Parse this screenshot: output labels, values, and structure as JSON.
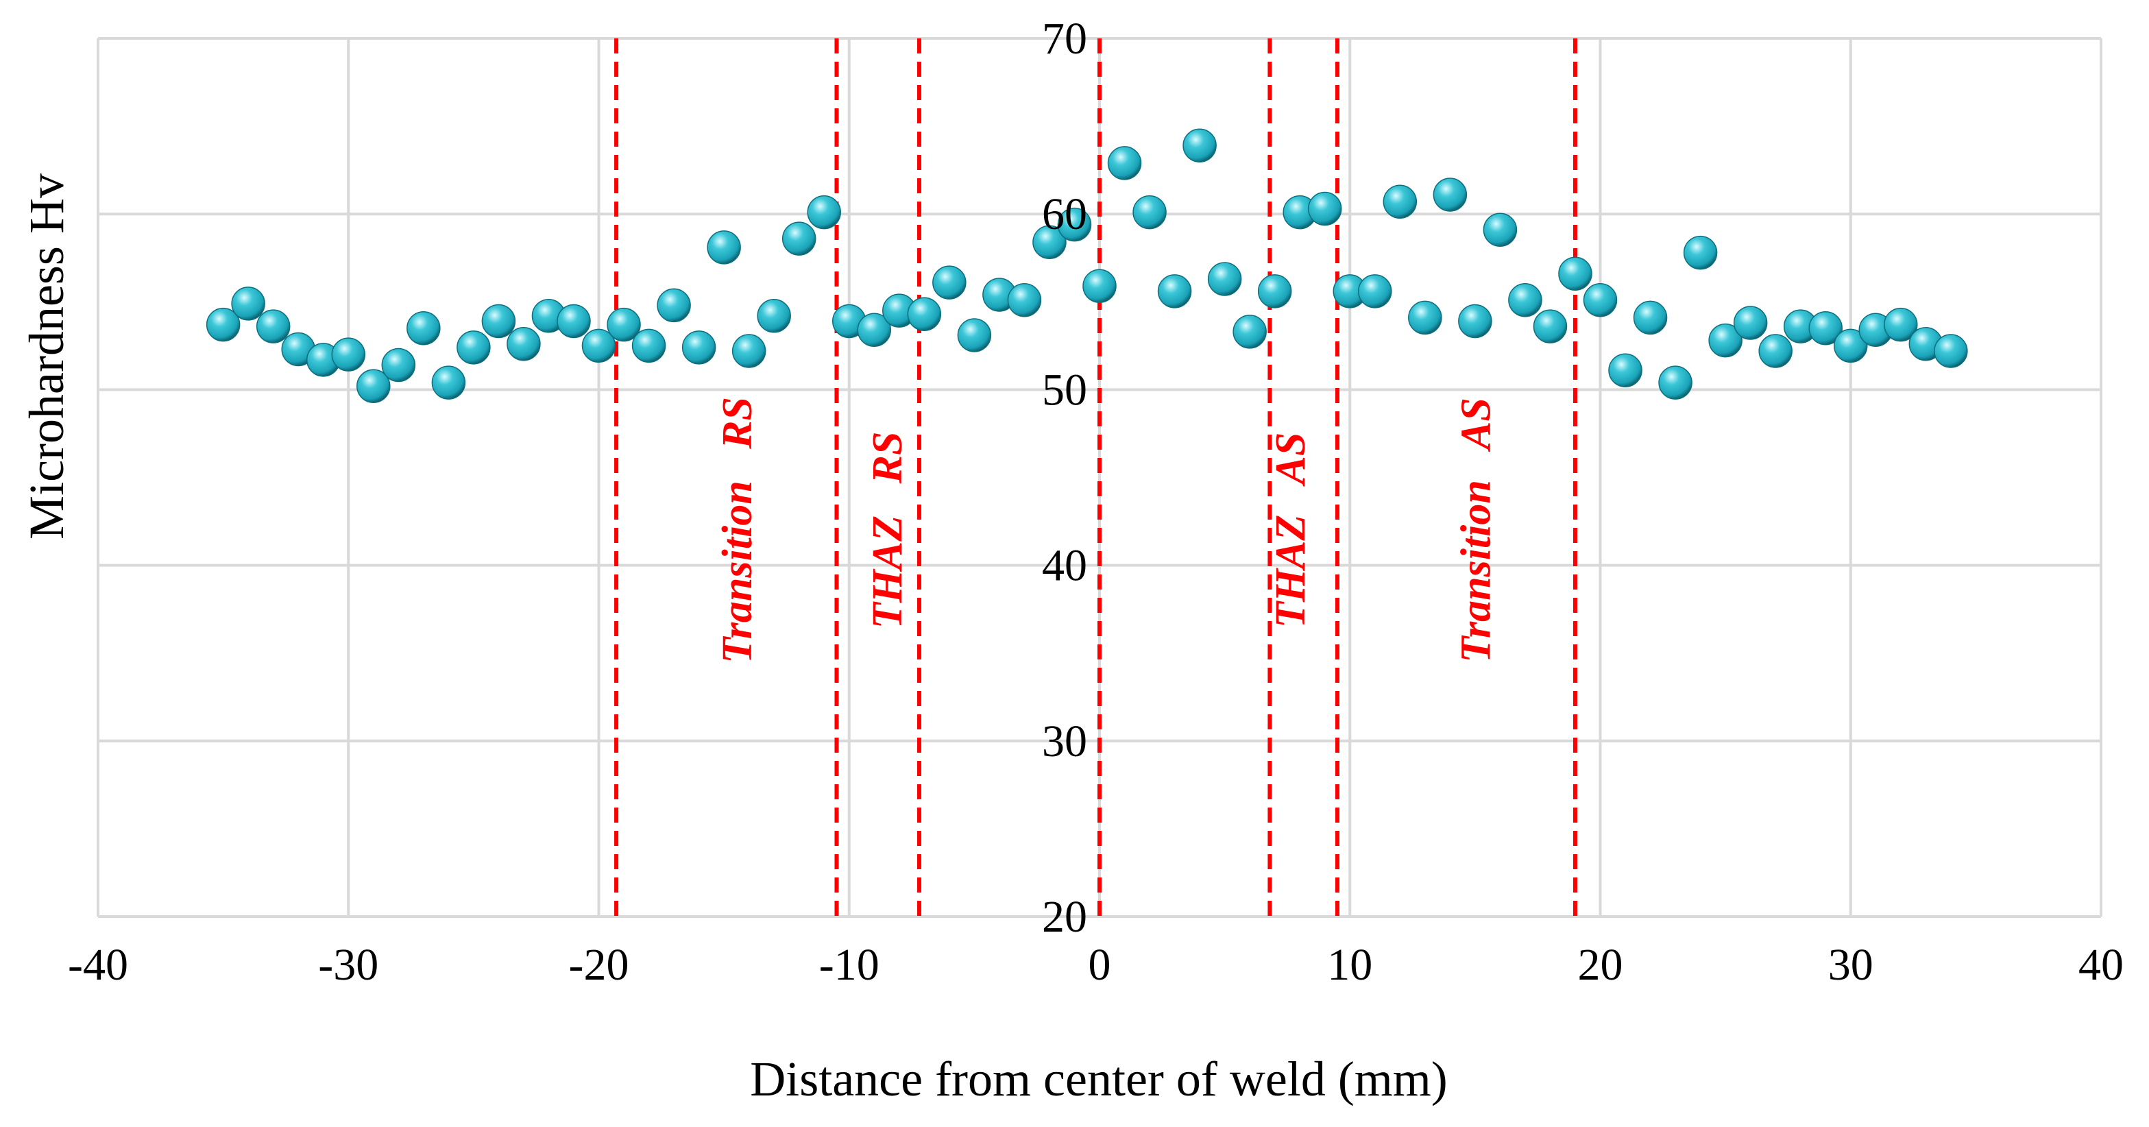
{
  "chart_data": {
    "type": "scatter",
    "title": "",
    "xlabel": "Distance from center of weld (mm)",
    "ylabel": "Microhardness Hv",
    "xlim": [
      -40,
      40
    ],
    "ylim": [
      20,
      70
    ],
    "x_ticks": [
      -40,
      -30,
      -20,
      -10,
      0,
      10,
      20,
      30,
      40
    ],
    "y_ticks": [
      20,
      30,
      40,
      50,
      60,
      70
    ],
    "grid": true,
    "legend": "none",
    "marker_color": "#1aa3b8",
    "series": [
      {
        "name": "Microhardness",
        "points": [
          [
            -35,
            53.7
          ],
          [
            -34,
            54.9
          ],
          [
            -33,
            53.6
          ],
          [
            -32,
            52.3
          ],
          [
            -31,
            51.7
          ],
          [
            -30,
            52.0
          ],
          [
            -29,
            50.2
          ],
          [
            -28,
            51.4
          ],
          [
            -27,
            53.5
          ],
          [
            -26,
            50.4
          ],
          [
            -25,
            52.4
          ],
          [
            -24,
            53.9
          ],
          [
            -23,
            52.6
          ],
          [
            -22,
            54.2
          ],
          [
            -21,
            53.9
          ],
          [
            -20,
            52.5
          ],
          [
            -19,
            53.7
          ],
          [
            -18,
            52.5
          ],
          [
            -17,
            54.8
          ],
          [
            -16,
            52.4
          ],
          [
            -15,
            58.1
          ],
          [
            -14,
            52.2
          ],
          [
            -13,
            54.2
          ],
          [
            -12,
            58.6
          ],
          [
            -11,
            60.1
          ],
          [
            -10,
            53.9
          ],
          [
            -9,
            53.4
          ],
          [
            -8,
            54.5
          ],
          [
            -7,
            54.3
          ],
          [
            -6,
            56.1
          ],
          [
            -5,
            53.1
          ],
          [
            -4,
            55.4
          ],
          [
            -3,
            55.1
          ],
          [
            -2,
            58.4
          ],
          [
            -1,
            59.4
          ],
          [
            0,
            55.9
          ],
          [
            1,
            62.9
          ],
          [
            2,
            60.1
          ],
          [
            3,
            55.6
          ],
          [
            4,
            63.9
          ],
          [
            5,
            56.3
          ],
          [
            6,
            53.3
          ],
          [
            7,
            55.6
          ],
          [
            8,
            60.1
          ],
          [
            9,
            60.3
          ],
          [
            10,
            55.6
          ],
          [
            11,
            55.6
          ],
          [
            12,
            60.7
          ],
          [
            13,
            54.1
          ],
          [
            14,
            61.1
          ],
          [
            15,
            53.9
          ],
          [
            16,
            59.1
          ],
          [
            17,
            55.1
          ],
          [
            18,
            53.6
          ],
          [
            19,
            56.6
          ],
          [
            20,
            55.1
          ],
          [
            21,
            51.1
          ],
          [
            22,
            54.1
          ],
          [
            23,
            50.4
          ],
          [
            24,
            57.8
          ],
          [
            25,
            52.8
          ],
          [
            26,
            53.8
          ],
          [
            27,
            52.2
          ],
          [
            28,
            53.6
          ],
          [
            29,
            53.5
          ],
          [
            30,
            52.5
          ],
          [
            31,
            53.4
          ],
          [
            32,
            53.7
          ],
          [
            33,
            52.6
          ],
          [
            34,
            52.2
          ]
        ]
      }
    ],
    "zone_boundaries": [
      -19.3,
      -10.5,
      -7.2,
      0,
      6.8,
      9.5,
      19.0
    ],
    "zone_labels": [
      {
        "text": "Transition   RS",
        "x": -14.3
      },
      {
        "text": "THAZ   RS",
        "x": -8.3
      },
      {
        "text": "THAZ   AS",
        "x": 7.8
      },
      {
        "text": "Transition   AS",
        "x": 15.2
      }
    ],
    "zone_color": "#ff0000"
  }
}
